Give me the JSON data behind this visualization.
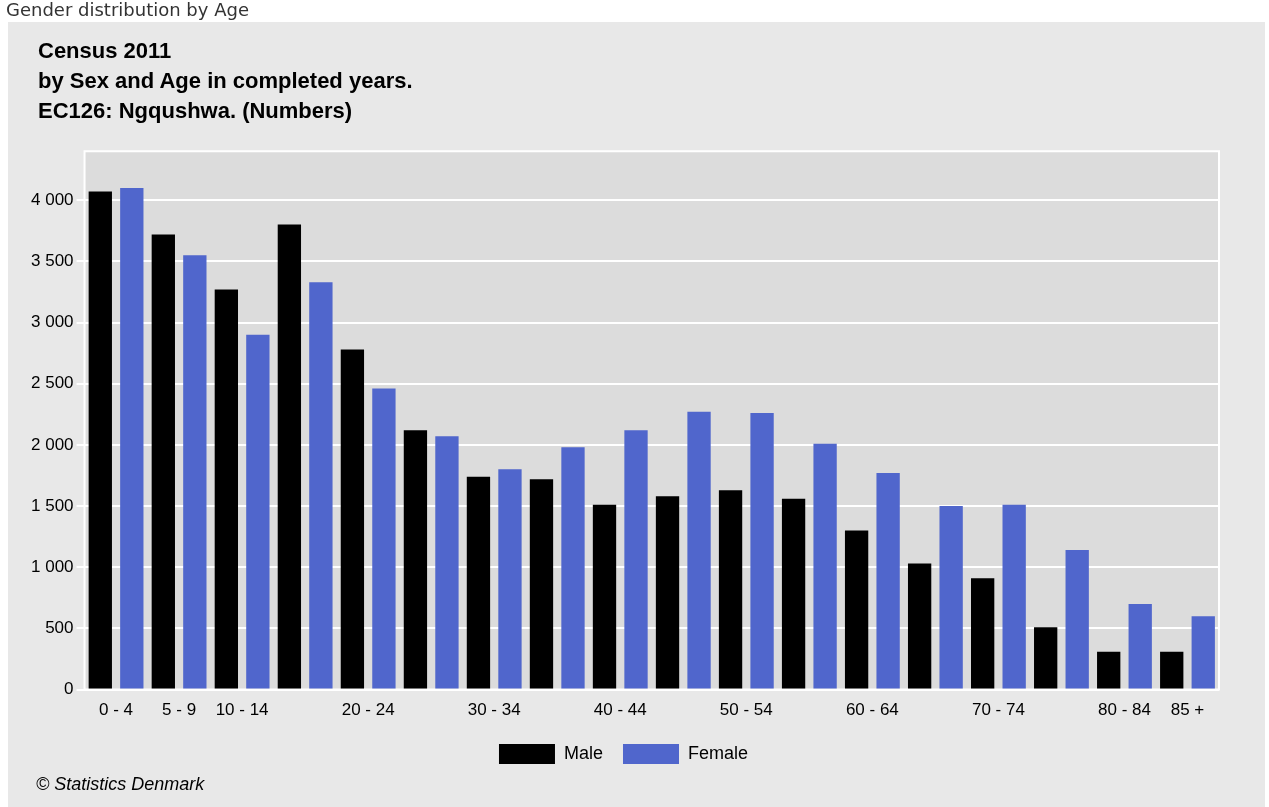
{
  "chart_data": {
    "type": "bar",
    "title": "Census 2011\nby Sex and Age in completed years.\nEC126: Ngqushwa. (Numbers)",
    "annotations": [
      "Gender distribution by Age",
      "© Statistics Denmark"
    ],
    "categories": [
      "0 - 4",
      "5 - 9",
      "10 - 14",
      null,
      "20 - 24",
      null,
      "30 - 34",
      null,
      "40 - 44",
      null,
      "50 - 54",
      null,
      "60 - 64",
      null,
      "70 - 74",
      null,
      "80 - 84",
      "85 +"
    ],
    "series": [
      {
        "name": "Male",
        "color": "#000000",
        "values": [
          4070,
          3720,
          3270,
          3800,
          2780,
          2120,
          1740,
          1720,
          1510,
          1580,
          1630,
          1560,
          1300,
          1030,
          910,
          510,
          310,
          310
        ]
      },
      {
        "name": "Female",
        "color": "#5066cc",
        "values": [
          4100,
          3550,
          2900,
          3330,
          2460,
          2070,
          1800,
          1980,
          2120,
          2270,
          2260,
          2010,
          1770,
          1500,
          1510,
          1140,
          700,
          600
        ]
      }
    ],
    "ylim": [
      0,
      4400
    ],
    "yticks": [
      0,
      500,
      {
        "value": 1000,
        "label": "1 000"
      },
      {
        "value": 1500,
        "label": "1 500"
      },
      {
        "value": 2000,
        "label": "2 000"
      },
      {
        "value": 2500,
        "label": "2 500"
      },
      {
        "value": 3000,
        "label": "3 000"
      },
      {
        "value": 3500,
        "label": "3 500"
      },
      {
        "value": 4000,
        "label": "4 000"
      }
    ],
    "grid": "y",
    "legend": "bottom"
  }
}
